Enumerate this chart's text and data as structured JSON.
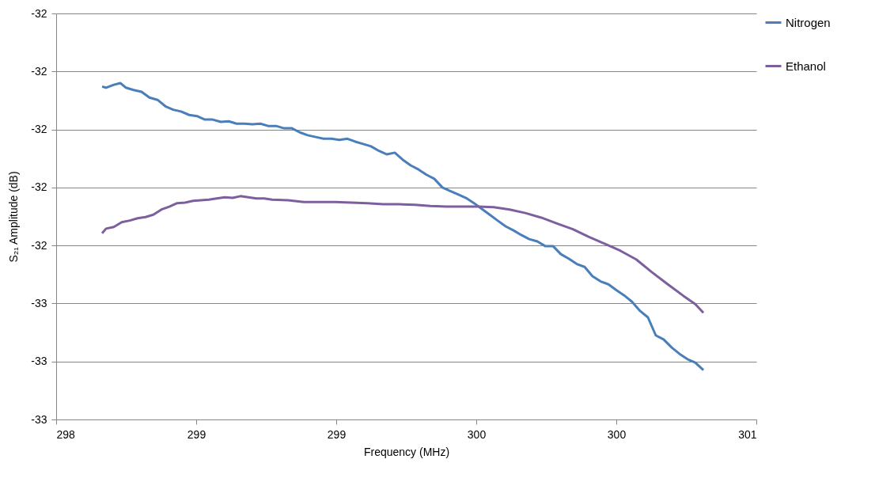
{
  "chart_data": {
    "type": "line",
    "xlabel": "Frequency (MHz)",
    "ylabel": "S₂₁ Amplitude (dB)",
    "xlim": [
      298,
      300.5
    ],
    "xticks": [
      298,
      {
        "value": 298.5,
        "label": "299"
      },
      299,
      {
        "value": 299.5,
        "label": "300"
      },
      300,
      {
        "value": 300.5,
        "label": "301"
      }
    ],
    "ylim": [
      -32.7,
      -32
    ],
    "yticks": [
      -32,
      {
        "value": -32.1,
        "label": "-32"
      },
      {
        "value": -32.2,
        "label": "-32"
      },
      {
        "value": -32.3,
        "label": "-32"
      },
      {
        "value": -32.4,
        "label": "-32"
      },
      {
        "value": -32.5,
        "label": "-33"
      },
      {
        "value": -32.6,
        "label": "-33"
      },
      {
        "value": -32.7,
        "label": "-33"
      }
    ],
    "grid": "y",
    "legend": "right",
    "line_style": "solid",
    "marker": "none",
    "series": [
      {
        "name": "Nitrogen",
        "color": "#4a7ebb",
        "x": [
          298.164,
          298.178,
          298.206,
          298.229,
          298.249,
          298.277,
          298.305,
          298.333,
          298.362,
          298.39,
          298.418,
          298.446,
          298.475,
          298.503,
          298.531,
          298.559,
          298.588,
          298.616,
          298.644,
          298.672,
          298.701,
          298.729,
          298.757,
          298.785,
          298.814,
          298.842,
          298.87,
          298.898,
          298.927,
          298.955,
          298.983,
          299.011,
          299.04,
          299.068,
          299.096,
          299.124,
          299.153,
          299.181,
          299.209,
          299.237,
          299.266,
          299.294,
          299.322,
          299.35,
          299.379,
          299.407,
          299.435,
          299.463,
          299.492,
          299.52,
          299.548,
          299.576,
          299.605,
          299.633,
          299.661,
          299.689,
          299.718,
          299.746,
          299.774,
          299.802,
          299.831,
          299.859,
          299.887,
          299.915,
          299.944,
          299.972,
          300.0,
          300.028,
          300.056,
          300.085,
          300.113,
          300.141,
          300.169,
          300.198,
          300.226,
          300.254,
          300.282,
          300.311
        ],
        "values": [
          -32.126,
          -32.128,
          -32.123,
          -32.12,
          -32.128,
          -32.132,
          -32.135,
          -32.145,
          -32.149,
          -32.16,
          -32.166,
          -32.169,
          -32.175,
          -32.177,
          -32.183,
          -32.183,
          -32.187,
          -32.186,
          -32.19,
          -32.19,
          -32.191,
          -32.19,
          -32.194,
          -32.194,
          -32.198,
          -32.198,
          -32.205,
          -32.21,
          -32.213,
          -32.216,
          -32.216,
          -32.218,
          -32.216,
          -32.221,
          -32.225,
          -32.229,
          -32.237,
          -32.243,
          -32.24,
          -32.252,
          -32.262,
          -32.269,
          -32.278,
          -32.285,
          -32.3,
          -32.306,
          -32.312,
          -32.318,
          -32.327,
          -32.337,
          -32.347,
          -32.357,
          -32.367,
          -32.374,
          -32.382,
          -32.389,
          -32.393,
          -32.401,
          -32.401,
          -32.415,
          -32.423,
          -32.432,
          -32.437,
          -32.453,
          -32.462,
          -32.467,
          -32.477,
          -32.486,
          -32.497,
          -32.513,
          -32.524,
          -32.555,
          -32.562,
          -32.576,
          -32.587,
          -32.596,
          -32.602,
          -32.615
        ]
      },
      {
        "name": "Ethanol",
        "color": "#7d5f9f",
        "x": [
          298.164,
          298.178,
          298.206,
          298.234,
          298.263,
          298.291,
          298.319,
          298.347,
          298.376,
          298.404,
          298.432,
          298.46,
          298.489,
          298.517,
          298.545,
          298.573,
          298.602,
          298.63,
          298.658,
          298.686,
          298.715,
          298.743,
          298.771,
          298.828,
          298.884,
          298.941,
          298.997,
          299.054,
          299.11,
          299.167,
          299.223,
          299.28,
          299.336,
          299.393,
          299.449,
          299.506,
          299.562,
          299.619,
          299.675,
          299.732,
          299.788,
          299.845,
          299.901,
          299.958,
          300.014,
          300.071,
          300.127,
          300.184,
          300.24,
          300.282,
          300.311
        ],
        "values": [
          -32.379,
          -32.371,
          -32.368,
          -32.36,
          -32.357,
          -32.353,
          -32.351,
          -32.347,
          -32.338,
          -32.333,
          -32.327,
          -32.326,
          -32.323,
          -32.322,
          -32.321,
          -32.319,
          -32.317,
          -32.318,
          -32.315,
          -32.317,
          -32.319,
          -32.319,
          -32.321,
          -32.322,
          -32.325,
          -32.325,
          -32.325,
          -32.326,
          -32.327,
          -32.329,
          -32.329,
          -32.33,
          -32.332,
          -32.333,
          -32.333,
          -32.333,
          -32.334,
          -32.338,
          -32.344,
          -32.352,
          -32.362,
          -32.372,
          -32.385,
          -32.397,
          -32.409,
          -32.424,
          -32.446,
          -32.467,
          -32.487,
          -32.501,
          -32.516
        ]
      }
    ]
  }
}
